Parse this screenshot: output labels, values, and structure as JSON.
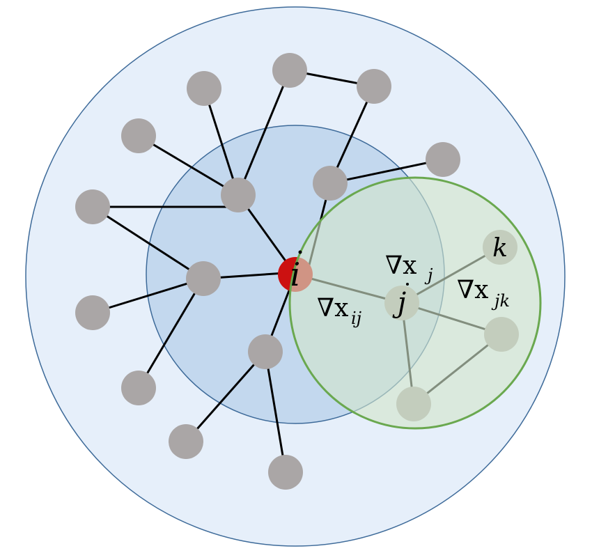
{
  "colors": {
    "outer_region_fill": "#e6effa",
    "outer_region_stroke": "#3d6a99",
    "inner_region_fill": "#c3d8ee",
    "inner_region_stroke": "#3d6a99",
    "neighborhood_fill": "#d2e5cc",
    "neighborhood_stroke": "#6aa84f",
    "node_fill": "#aaa6a6",
    "focus_node_fill": "#cc1111",
    "edge_color": "#000000"
  },
  "labels": {
    "node_i": "i",
    "node_j": "j",
    "node_k": "k",
    "grad_ij_symbol": "∇x",
    "grad_ij_sub": "ij",
    "grad_j_symbol": "∇x",
    "grad_j_sub": "j",
    "grad_jk_symbol": "∇x",
    "grad_jk_sub": "jk"
  }
}
